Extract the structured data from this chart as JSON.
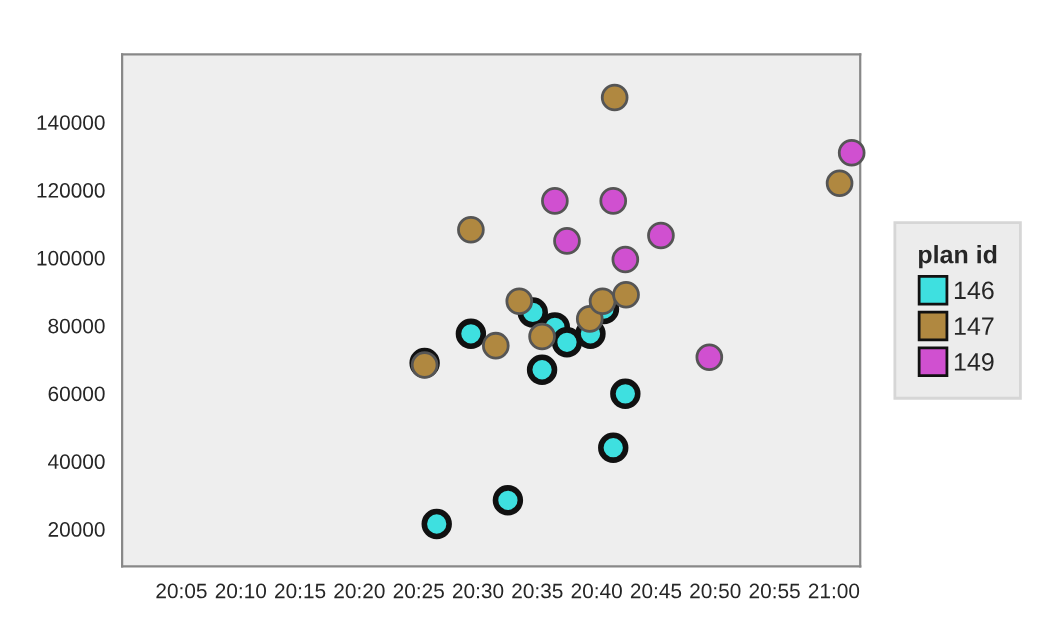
{
  "chart_data": {
    "type": "scatter",
    "legend_title": "plan id",
    "legend": "right",
    "marker": "circle",
    "grid": false,
    "xlim": [
      20.0,
      21.037
    ],
    "ylim": [
      9000,
      160000
    ],
    "xticks": [
      {
        "value": 20.0833,
        "label": "20:05"
      },
      {
        "value": 20.1667,
        "label": "20:10"
      },
      {
        "value": 20.25,
        "label": "20:15"
      },
      {
        "value": 20.3333,
        "label": "20:20"
      },
      {
        "value": 20.4167,
        "label": "20:25"
      },
      {
        "value": 20.5,
        "label": "20:30"
      },
      {
        "value": 20.5833,
        "label": "20:35"
      },
      {
        "value": 20.6667,
        "label": "20:40"
      },
      {
        "value": 20.75,
        "label": "20:45"
      },
      {
        "value": 20.8333,
        "label": "20:50"
      },
      {
        "value": 20.9167,
        "label": "20:55"
      },
      {
        "value": 21.0,
        "label": "21:00"
      }
    ],
    "yticks": [
      20000,
      40000,
      60000,
      80000,
      100000,
      120000,
      140000
    ],
    "series": [
      {
        "name": "146",
        "color": "#3ee0e0",
        "x": [
          20.442,
          20.542,
          20.49,
          20.425,
          20.577,
          20.608,
          20.625,
          20.59,
          20.658,
          20.677,
          20.707,
          20.69
        ],
        "values": [
          21500,
          28500,
          77600,
          69000,
          83900,
          79500,
          75100,
          67000,
          77600,
          84900,
          59900,
          44000
        ]
      },
      {
        "name": "147",
        "color": "#b08840",
        "x": [
          20.425,
          20.49,
          20.525,
          20.558,
          20.59,
          20.657,
          20.675,
          20.708,
          20.692,
          21.008
        ],
        "values": [
          68400,
          108300,
          74100,
          87200,
          76800,
          82000,
          87200,
          89100,
          147300,
          122000
        ]
      },
      {
        "name": "149",
        "color": "#d050d0",
        "x": [
          20.608,
          20.69,
          20.625,
          20.707,
          20.757,
          20.825,
          21.025
        ],
        "values": [
          116800,
          116800,
          105000,
          99500,
          106600,
          70700,
          131000
        ]
      }
    ]
  }
}
